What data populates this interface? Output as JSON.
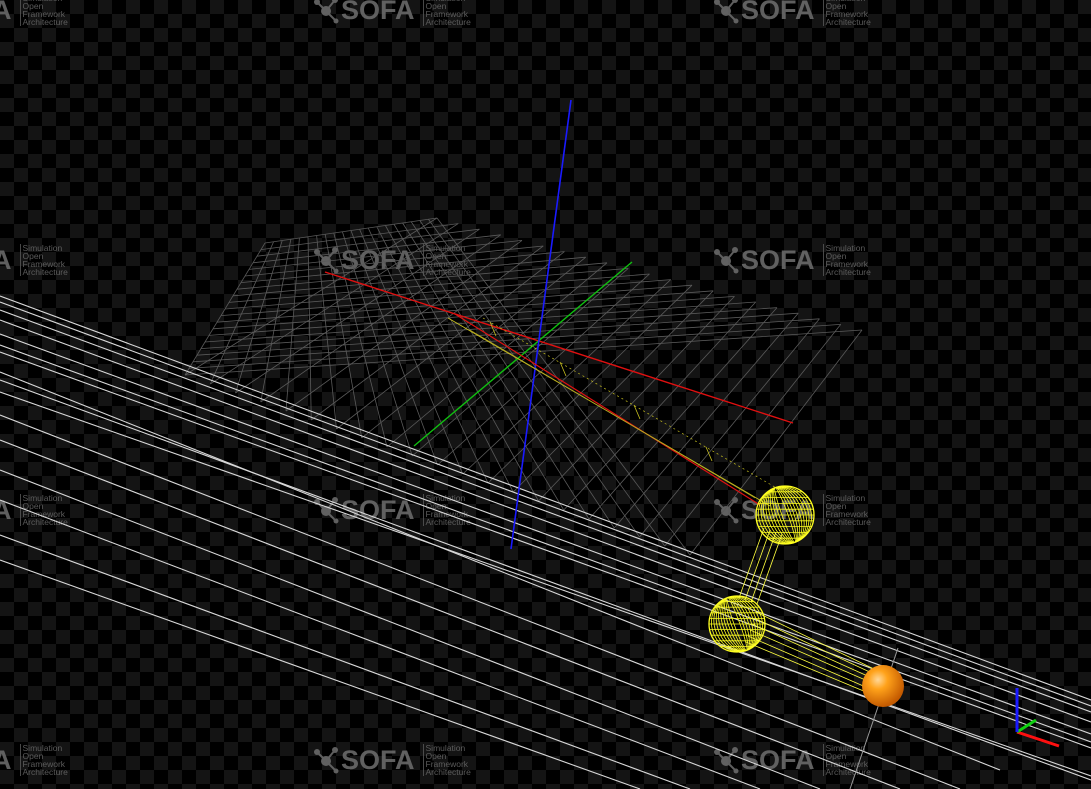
{
  "viewer": {
    "background": "#000000",
    "checker_color": "#141414"
  },
  "watermark": {
    "brand": "SOFA",
    "tagline": [
      "Simulation",
      "Open",
      "Framework",
      "Architecture"
    ],
    "icon": "sofa-molecule-icon",
    "color": "#6f6f6f"
  },
  "scene": {
    "axes_colors": {
      "x": "#e01010",
      "y": "#10c010",
      "z": "#1010e0"
    },
    "grid_color": "#5a5a5a",
    "wire_color": "#d8d8d8",
    "collision_color": "#ffff20",
    "particle_color": "#ff9a00"
  },
  "orientation_gizmo": {
    "icon": "axis-orientation-icon"
  }
}
